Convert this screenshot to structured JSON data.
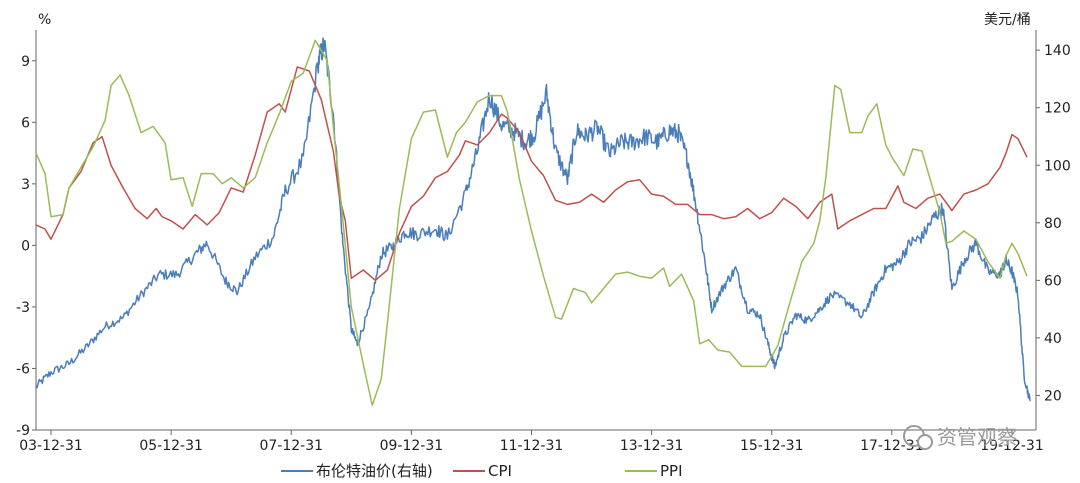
{
  "chart_data": {
    "type": "line",
    "left_axis": {
      "unit": "%",
      "min": -9,
      "max": 10.5,
      "ticks": [
        9,
        6,
        3,
        0,
        -3,
        -6,
        -9
      ]
    },
    "right_axis": {
      "unit": "美元/桶",
      "min": 8,
      "max": 147,
      "ticks": [
        140,
        120,
        100,
        80,
        60,
        40,
        20
      ]
    },
    "x_range": [
      2003.75,
      2020.4
    ],
    "x_ticks": [
      {
        "x": 2004.0,
        "label": "03-12-31"
      },
      {
        "x": 2006.0,
        "label": "05-12-31"
      },
      {
        "x": 2008.0,
        "label": "07-12-31"
      },
      {
        "x": 2010.0,
        "label": "09-12-31"
      },
      {
        "x": 2012.0,
        "label": "11-12-31"
      },
      {
        "x": 2014.0,
        "label": "13-12-31"
      },
      {
        "x": 2016.0,
        "label": "15-12-31"
      },
      {
        "x": 2018.0,
        "label": "17-12-31"
      },
      {
        "x": 2020.0,
        "label": "19-12-31"
      }
    ],
    "series": [
      {
        "name": "布伦特油价(右轴)",
        "axis": "right",
        "color": "#4a7ebb",
        "points": [
          [
            2003.75,
            23
          ],
          [
            2004.0,
            28
          ],
          [
            2004.3,
            31
          ],
          [
            2004.6,
            37
          ],
          [
            2004.9,
            44
          ],
          [
            2005.2,
            47
          ],
          [
            2005.5,
            55
          ],
          [
            2005.8,
            62
          ],
          [
            2006.1,
            62
          ],
          [
            2006.4,
            69
          ],
          [
            2006.6,
            73
          ],
          [
            2006.9,
            60
          ],
          [
            2007.1,
            56
          ],
          [
            2007.4,
            68
          ],
          [
            2007.7,
            75
          ],
          [
            2007.9,
            91
          ],
          [
            2008.2,
            102
          ],
          [
            2008.45,
            136
          ],
          [
            2008.55,
            142
          ],
          [
            2008.7,
            118
          ],
          [
            2008.85,
            75
          ],
          [
            2009.0,
            43
          ],
          [
            2009.1,
            38
          ],
          [
            2009.3,
            50
          ],
          [
            2009.5,
            69
          ],
          [
            2009.7,
            72
          ],
          [
            2009.9,
            77
          ],
          [
            2010.1,
            76
          ],
          [
            2010.4,
            78
          ],
          [
            2010.6,
            75
          ],
          [
            2010.9,
            90
          ],
          [
            2011.1,
            105
          ],
          [
            2011.3,
            124
          ],
          [
            2011.5,
            114
          ],
          [
            2011.7,
            112
          ],
          [
            2011.9,
            108
          ],
          [
            2012.05,
            111
          ],
          [
            2012.25,
            125
          ],
          [
            2012.4,
            105
          ],
          [
            2012.6,
            95
          ],
          [
            2012.75,
            112
          ],
          [
            2012.9,
            110
          ],
          [
            2013.1,
            113
          ],
          [
            2013.3,
            104
          ],
          [
            2013.5,
            108
          ],
          [
            2013.7,
            108
          ],
          [
            2013.9,
            110
          ],
          [
            2014.1,
            108
          ],
          [
            2014.3,
            112
          ],
          [
            2014.45,
            111
          ],
          [
            2014.6,
            102
          ],
          [
            2014.75,
            85
          ],
          [
            2014.9,
            65
          ],
          [
            2015.0,
            50
          ],
          [
            2015.2,
            58
          ],
          [
            2015.4,
            64
          ],
          [
            2015.6,
            50
          ],
          [
            2015.8,
            48
          ],
          [
            2015.95,
            37
          ],
          [
            2016.05,
            30
          ],
          [
            2016.2,
            40
          ],
          [
            2016.4,
            48
          ],
          [
            2016.6,
            46
          ],
          [
            2016.8,
            50
          ],
          [
            2017.0,
            55
          ],
          [
            2017.3,
            52
          ],
          [
            2017.5,
            47
          ],
          [
            2017.7,
            56
          ],
          [
            2017.9,
            64
          ],
          [
            2018.1,
            66
          ],
          [
            2018.3,
            73
          ],
          [
            2018.5,
            75
          ],
          [
            2018.7,
            82
          ],
          [
            2018.85,
            85
          ],
          [
            2019.0,
            57
          ],
          [
            2019.2,
            67
          ],
          [
            2019.4,
            73
          ],
          [
            2019.6,
            63
          ],
          [
            2019.8,
            62
          ],
          [
            2019.9,
            67
          ],
          [
            2020.0,
            63
          ],
          [
            2020.1,
            55
          ],
          [
            2020.2,
            27
          ],
          [
            2020.3,
            18
          ]
        ]
      },
      {
        "name": "CPI",
        "axis": "left",
        "color": "#c0504d",
        "points": [
          [
            2003.75,
            1.0
          ],
          [
            2003.9,
            0.8
          ],
          [
            2004.0,
            0.3
          ],
          [
            2004.2,
            1.5
          ],
          [
            2004.3,
            2.8
          ],
          [
            2004.5,
            3.6
          ],
          [
            2004.7,
            5.0
          ],
          [
            2004.85,
            5.3
          ],
          [
            2005.0,
            3.9
          ],
          [
            2005.2,
            2.8
          ],
          [
            2005.4,
            1.8
          ],
          [
            2005.6,
            1.3
          ],
          [
            2005.75,
            1.8
          ],
          [
            2005.85,
            1.4
          ],
          [
            2006.0,
            1.2
          ],
          [
            2006.2,
            0.8
          ],
          [
            2006.4,
            1.5
          ],
          [
            2006.6,
            1.0
          ],
          [
            2006.8,
            1.6
          ],
          [
            2007.0,
            2.8
          ],
          [
            2007.2,
            2.6
          ],
          [
            2007.4,
            4.4
          ],
          [
            2007.6,
            6.5
          ],
          [
            2007.8,
            6.9
          ],
          [
            2007.9,
            6.5
          ],
          [
            2008.1,
            8.7
          ],
          [
            2008.3,
            8.5
          ],
          [
            2008.5,
            7.1
          ],
          [
            2008.7,
            4.6
          ],
          [
            2008.8,
            2.4
          ],
          [
            2008.9,
            1.2
          ],
          [
            2009.0,
            -1.6
          ],
          [
            2009.2,
            -1.2
          ],
          [
            2009.4,
            -1.7
          ],
          [
            2009.6,
            -1.2
          ],
          [
            2009.8,
            0.6
          ],
          [
            2010.0,
            1.9
          ],
          [
            2010.2,
            2.4
          ],
          [
            2010.4,
            3.3
          ],
          [
            2010.6,
            3.6
          ],
          [
            2010.8,
            4.4
          ],
          [
            2010.9,
            5.1
          ],
          [
            2011.1,
            4.9
          ],
          [
            2011.3,
            5.5
          ],
          [
            2011.5,
            6.4
          ],
          [
            2011.6,
            6.2
          ],
          [
            2011.8,
            5.5
          ],
          [
            2012.0,
            4.1
          ],
          [
            2012.2,
            3.4
          ],
          [
            2012.4,
            2.2
          ],
          [
            2012.6,
            2.0
          ],
          [
            2012.8,
            2.1
          ],
          [
            2013.0,
            2.5
          ],
          [
            2013.2,
            2.1
          ],
          [
            2013.4,
            2.7
          ],
          [
            2013.6,
            3.1
          ],
          [
            2013.8,
            3.2
          ],
          [
            2014.0,
            2.5
          ],
          [
            2014.2,
            2.4
          ],
          [
            2014.4,
            2.0
          ],
          [
            2014.6,
            2.0
          ],
          [
            2014.8,
            1.5
          ],
          [
            2015.0,
            1.5
          ],
          [
            2015.2,
            1.3
          ],
          [
            2015.4,
            1.4
          ],
          [
            2015.6,
            1.8
          ],
          [
            2015.8,
            1.3
          ],
          [
            2016.0,
            1.6
          ],
          [
            2016.2,
            2.3
          ],
          [
            2016.4,
            1.9
          ],
          [
            2016.6,
            1.3
          ],
          [
            2016.8,
            2.1
          ],
          [
            2017.0,
            2.5
          ],
          [
            2017.1,
            0.8
          ],
          [
            2017.3,
            1.2
          ],
          [
            2017.5,
            1.5
          ],
          [
            2017.7,
            1.8
          ],
          [
            2017.9,
            1.8
          ],
          [
            2018.1,
            2.9
          ],
          [
            2018.2,
            2.1
          ],
          [
            2018.4,
            1.8
          ],
          [
            2018.6,
            2.3
          ],
          [
            2018.8,
            2.5
          ],
          [
            2019.0,
            1.7
          ],
          [
            2019.2,
            2.5
          ],
          [
            2019.4,
            2.7
          ],
          [
            2019.6,
            3.0
          ],
          [
            2019.8,
            3.8
          ],
          [
            2019.9,
            4.5
          ],
          [
            2020.0,
            5.4
          ],
          [
            2020.1,
            5.2
          ],
          [
            2020.25,
            4.3
          ]
        ]
      },
      {
        "name": "PPI",
        "axis": "left",
        "color": "#9bbb59",
        "points": [
          [
            2003.75,
            4.5
          ],
          [
            2003.9,
            3.5
          ],
          [
            2004.0,
            1.4
          ],
          [
            2004.2,
            1.5
          ],
          [
            2004.3,
            2.8
          ],
          [
            2004.5,
            3.8
          ],
          [
            2004.7,
            4.8
          ],
          [
            2004.9,
            6.1
          ],
          [
            2005.0,
            7.8
          ],
          [
            2005.15,
            8.3
          ],
          [
            2005.3,
            7.3
          ],
          [
            2005.5,
            5.5
          ],
          [
            2005.7,
            5.8
          ],
          [
            2005.9,
            5.0
          ],
          [
            2006.0,
            3.2
          ],
          [
            2006.2,
            3.3
          ],
          [
            2006.35,
            1.9
          ],
          [
            2006.5,
            3.5
          ],
          [
            2006.7,
            3.5
          ],
          [
            2006.85,
            3.0
          ],
          [
            2007.0,
            3.3
          ],
          [
            2007.2,
            2.8
          ],
          [
            2007.4,
            3.3
          ],
          [
            2007.6,
            5.0
          ],
          [
            2007.8,
            6.4
          ],
          [
            2008.0,
            8.0
          ],
          [
            2008.2,
            8.4
          ],
          [
            2008.4,
            10.0
          ],
          [
            2008.6,
            9.0
          ],
          [
            2008.7,
            5.8
          ],
          [
            2008.85,
            1.5
          ],
          [
            2009.0,
            -3.0
          ],
          [
            2009.2,
            -5.8
          ],
          [
            2009.35,
            -7.8
          ],
          [
            2009.5,
            -6.5
          ],
          [
            2009.6,
            -3.8
          ],
          [
            2009.8,
            1.8
          ],
          [
            2010.0,
            5.2
          ],
          [
            2010.2,
            6.5
          ],
          [
            2010.4,
            6.6
          ],
          [
            2010.6,
            4.3
          ],
          [
            2010.75,
            5.5
          ],
          [
            2010.9,
            6.0
          ],
          [
            2011.1,
            7.0
          ],
          [
            2011.3,
            7.3
          ],
          [
            2011.5,
            7.3
          ],
          [
            2011.6,
            6.5
          ],
          [
            2011.8,
            3.2
          ],
          [
            2012.0,
            0.7
          ],
          [
            2012.2,
            -1.5
          ],
          [
            2012.4,
            -3.5
          ],
          [
            2012.5,
            -3.6
          ],
          [
            2012.7,
            -2.1
          ],
          [
            2012.9,
            -2.3
          ],
          [
            2013.0,
            -2.8
          ],
          [
            2013.2,
            -2.1
          ],
          [
            2013.4,
            -1.4
          ],
          [
            2013.6,
            -1.3
          ],
          [
            2013.8,
            -1.5
          ],
          [
            2014.0,
            -1.6
          ],
          [
            2014.2,
            -1.1
          ],
          [
            2014.3,
            -2.0
          ],
          [
            2014.5,
            -1.4
          ],
          [
            2014.7,
            -2.7
          ],
          [
            2014.8,
            -4.8
          ],
          [
            2014.95,
            -4.6
          ],
          [
            2015.1,
            -5.1
          ],
          [
            2015.3,
            -5.2
          ],
          [
            2015.5,
            -5.9
          ],
          [
            2015.7,
            -5.9
          ],
          [
            2015.9,
            -5.9
          ],
          [
            2016.1,
            -4.9
          ],
          [
            2016.3,
            -2.8
          ],
          [
            2016.5,
            -0.8
          ],
          [
            2016.7,
            0.1
          ],
          [
            2016.8,
            1.2
          ],
          [
            2016.9,
            3.3
          ],
          [
            2017.05,
            7.8
          ],
          [
            2017.15,
            7.6
          ],
          [
            2017.3,
            5.5
          ],
          [
            2017.5,
            5.5
          ],
          [
            2017.6,
            6.3
          ],
          [
            2017.75,
            6.9
          ],
          [
            2017.9,
            4.9
          ],
          [
            2018.0,
            4.3
          ],
          [
            2018.2,
            3.4
          ],
          [
            2018.35,
            4.7
          ],
          [
            2018.5,
            4.6
          ],
          [
            2018.6,
            3.6
          ],
          [
            2018.8,
            1.6
          ],
          [
            2018.9,
            0.1
          ],
          [
            2019.0,
            0.2
          ],
          [
            2019.2,
            0.7
          ],
          [
            2019.4,
            0.3
          ],
          [
            2019.6,
            -0.8
          ],
          [
            2019.8,
            -1.6
          ],
          [
            2019.9,
            -0.5
          ],
          [
            2020.0,
            0.1
          ],
          [
            2020.1,
            -0.4
          ],
          [
            2020.25,
            -1.5
          ]
        ]
      }
    ],
    "legend": [
      {
        "label": "布伦特油价(右轴)",
        "color": "#4a7ebb"
      },
      {
        "label": "CPI",
        "color": "#c0504d"
      },
      {
        "label": "PPI",
        "color": "#9bbb59"
      }
    ],
    "legend_position": "bottom",
    "grid": false
  },
  "watermark": "资管观察"
}
